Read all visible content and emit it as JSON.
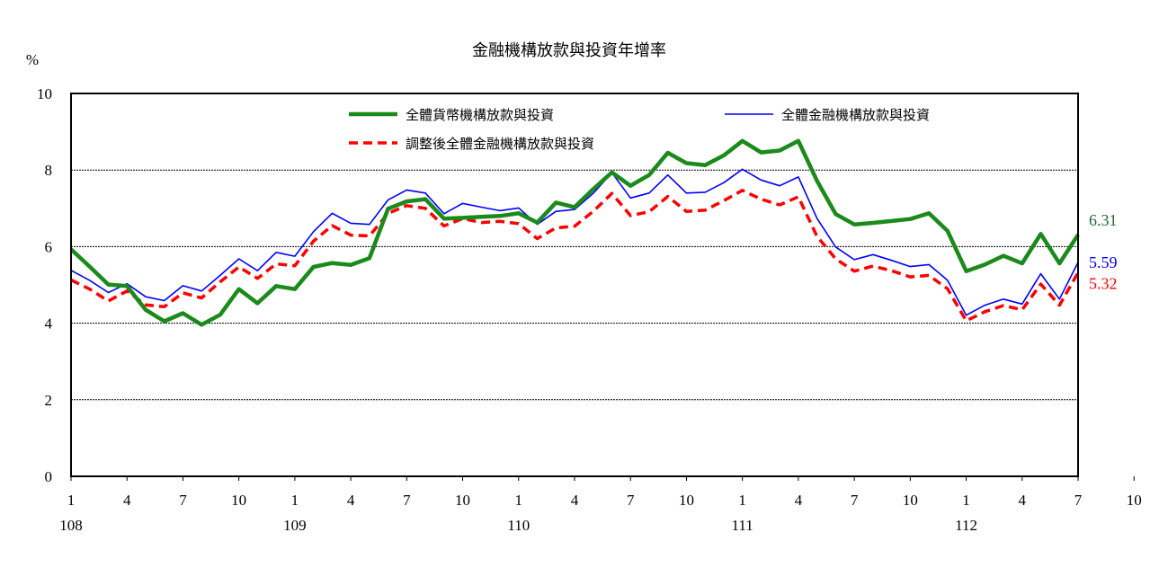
{
  "chart_data": {
    "type": "line",
    "title": "金融機構放款與投資年增率",
    "ylabel": "%",
    "ylim": [
      0,
      10
    ],
    "yticks": [
      0,
      2,
      4,
      6,
      8,
      10
    ],
    "grid": true,
    "legend_position": "top",
    "x_month_ticks": [
      "1",
      "4",
      "7",
      "10",
      "1",
      "4",
      "7",
      "10",
      "1",
      "4",
      "7",
      "10",
      "1",
      "4",
      "7",
      "10",
      "1",
      "4",
      "7",
      "10",
      "1",
      "4",
      "7"
    ],
    "x_year_ticks": [
      "108",
      "109",
      "110",
      "111",
      "112"
    ],
    "series": [
      {
        "name": "全體貨幣機構放款與投資",
        "color": "#1a8a1a",
        "style": "thick",
        "end_label": "6.31",
        "end_label_color": "#1f6b2e",
        "values": [
          5.93,
          5.48,
          5.01,
          4.97,
          4.35,
          4.05,
          4.26,
          3.96,
          4.22,
          4.89,
          4.52,
          4.97,
          4.89,
          5.47,
          5.57,
          5.52,
          5.7,
          6.99,
          7.18,
          7.24,
          6.73,
          6.75,
          6.78,
          6.8,
          6.87,
          6.63,
          7.15,
          7.03,
          7.5,
          7.94,
          7.59,
          7.87,
          8.45,
          8.18,
          8.13,
          8.38,
          8.76,
          8.46,
          8.51,
          8.76,
          7.72,
          6.85,
          6.58,
          6.62,
          6.67,
          6.72,
          6.87,
          6.41,
          5.36,
          5.53,
          5.76,
          5.56,
          6.33,
          5.56,
          6.31
        ]
      },
      {
        "name": "全體金融機構放款與投資",
        "color": "#0000ff",
        "style": "thin",
        "end_label": "5.59",
        "end_label_color": "#0000ff",
        "values": [
          5.38,
          5.12,
          4.8,
          5.03,
          4.69,
          4.59,
          4.98,
          4.84,
          5.25,
          5.68,
          5.37,
          5.85,
          5.75,
          6.39,
          6.87,
          6.61,
          6.58,
          7.22,
          7.48,
          7.4,
          6.86,
          7.13,
          7.03,
          6.94,
          7.01,
          6.58,
          6.92,
          6.97,
          7.39,
          7.93,
          7.27,
          7.4,
          7.87,
          7.4,
          7.42,
          7.67,
          8.02,
          7.74,
          7.59,
          7.82,
          6.74,
          5.99,
          5.66,
          5.79,
          5.64,
          5.48,
          5.53,
          5.12,
          4.21,
          4.47,
          4.63,
          4.5,
          5.29,
          4.63,
          5.59
        ]
      },
      {
        "name": "調整後全體金融機構放款與投資",
        "color": "#ff0000",
        "style": "dashed",
        "end_label": "5.32",
        "end_label_color": "#ff0000",
        "values": [
          5.13,
          4.89,
          4.58,
          4.84,
          4.48,
          4.43,
          4.79,
          4.66,
          5.08,
          5.47,
          5.17,
          5.55,
          5.5,
          6.14,
          6.55,
          6.3,
          6.28,
          6.87,
          7.07,
          7.0,
          6.54,
          6.73,
          6.63,
          6.66,
          6.6,
          6.21,
          6.49,
          6.53,
          6.92,
          7.39,
          6.81,
          6.91,
          7.31,
          6.92,
          6.95,
          7.2,
          7.47,
          7.24,
          7.09,
          7.3,
          6.27,
          5.68,
          5.36,
          5.49,
          5.37,
          5.21,
          5.25,
          4.9,
          4.06,
          4.3,
          4.46,
          4.35,
          5.02,
          4.47,
          5.32
        ]
      }
    ]
  }
}
